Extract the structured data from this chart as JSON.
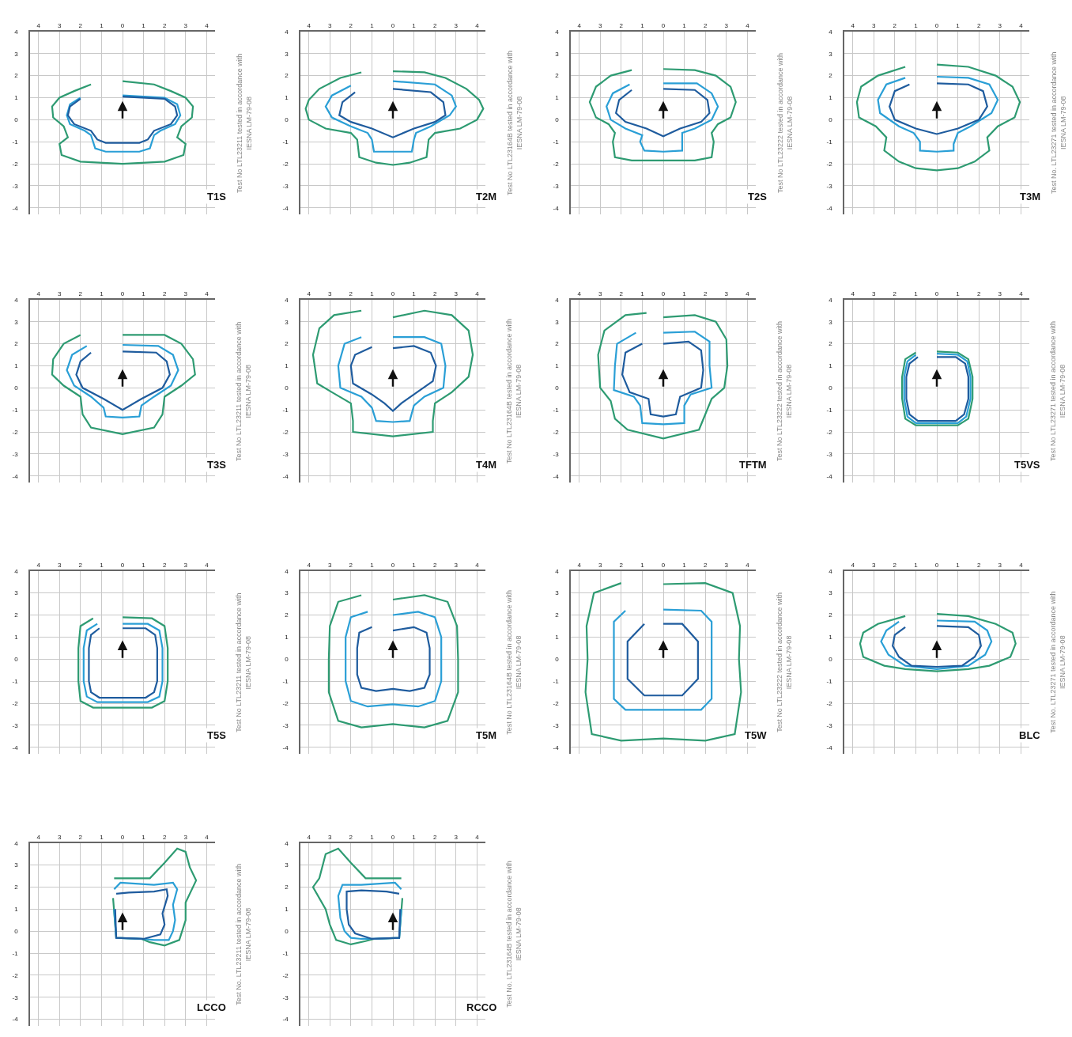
{
  "chart_data": [
    {
      "type": "line",
      "title": "T1S",
      "annotations": [
        "Test No LTL23211 tested in accordance with\nIESNA LM-79-08"
      ],
      "xlim": [
        -4.4,
        4.4
      ],
      "ylim": [
        -4.3,
        4
      ],
      "xticks": [
        {
          "value": -4,
          "label": "4"
        },
        {
          "value": -3,
          "label": "3"
        },
        {
          "value": -2,
          "label": "2"
        },
        {
          "value": -1,
          "label": "1"
        },
        0,
        1,
        2,
        3,
        4
      ],
      "yticks": [
        -4,
        -3,
        -2,
        -1,
        0,
        1,
        2,
        3,
        4
      ],
      "grid": true,
      "series": [
        {
          "color": "#2e9b72",
          "x": [
            0,
            1.5,
            2.3,
            3,
            3.35,
            3.3,
            2.8,
            2.6,
            3,
            2.9,
            2,
            0,
            -2,
            -2.9,
            -3,
            -2.6,
            -2.8,
            -3.3,
            -3.35,
            -3,
            -2.3,
            -1.5,
            0
          ],
          "values": [
            1.75,
            1.6,
            1.3,
            1,
            0.6,
            0.1,
            -0.3,
            -0.8,
            -1.1,
            -1.6,
            -1.9,
            -2,
            -1.9,
            -1.6,
            -1.1,
            -0.8,
            -0.3,
            0.1,
            0.6,
            1,
            1.3,
            1.6,
            1.75
          ]
        },
        {
          "color": "#2a9fd6",
          "x": [
            0,
            2,
            2.6,
            2.75,
            2.5,
            1.8,
            1.5,
            1.3,
            0.8,
            0,
            -0.8,
            -1.3,
            -1.5,
            -1.8,
            -2.5,
            -2.65,
            -2.5,
            -2,
            0
          ],
          "values": [
            1.1,
            1,
            0.7,
            0.2,
            -0.2,
            -0.5,
            -0.7,
            -1.3,
            -1.45,
            -1.45,
            -1.45,
            -1.3,
            -0.7,
            -0.5,
            -0.2,
            0.2,
            0.7,
            1,
            1.1
          ]
        },
        {
          "color": "#1f5c9e",
          "x": [
            0,
            2,
            2.5,
            2.6,
            2.3,
            1.5,
            1.2,
            0.8,
            0,
            -0.8,
            -1.2,
            -1.5,
            -2.3,
            -2.6,
            -2.5,
            -2,
            0
          ],
          "values": [
            1.05,
            0.95,
            0.6,
            0.2,
            -0.2,
            -0.5,
            -0.9,
            -1.05,
            -1.05,
            -1.05,
            -0.9,
            -0.5,
            -0.2,
            0.2,
            0.6,
            0.95,
            1.05
          ]
        }
      ]
    },
    {
      "type": "line",
      "title": "T2M",
      "annotations": [
        "Test No LTL23164B tested in accordance with\nIESNA LM-79-08"
      ],
      "xlim": [
        -4.4,
        4.4
      ],
      "ylim": [
        -4.3,
        4
      ],
      "xticks": [
        {
          "value": -4,
          "label": "4"
        },
        {
          "value": -3,
          "label": "3"
        },
        {
          "value": -2,
          "label": "2"
        },
        {
          "value": -1,
          "label": "1"
        },
        0,
        1,
        2,
        3,
        4
      ],
      "yticks": [
        -4,
        -3,
        -2,
        -1,
        0,
        1,
        2,
        3,
        4
      ],
      "grid": true,
      "series": [
        {
          "color": "#2e9b72",
          "x": [
            0,
            1.5,
            2.5,
            3.5,
            4.1,
            4.3,
            4,
            3.2,
            2,
            1.7,
            1.6,
            0.8,
            0,
            -0.8,
            -1.6,
            -1.7,
            -2,
            -3.2,
            -4,
            -4.15,
            -4,
            -3.5,
            -2.5,
            -1.5,
            0
          ],
          "values": [
            2.2,
            2.15,
            1.9,
            1.4,
            0.9,
            0.5,
            0,
            -0.4,
            -0.6,
            -0.9,
            -1.7,
            -1.95,
            -2.05,
            -1.95,
            -1.7,
            -0.9,
            -0.6,
            -0.4,
            0,
            0.5,
            0.9,
            1.4,
            1.9,
            2.15,
            2.2
          ]
        },
        {
          "color": "#2a9fd6",
          "x": [
            0,
            2,
            2.8,
            3,
            2.7,
            1.8,
            1.1,
            1,
            0.9,
            0,
            -0.9,
            -1,
            -1.2,
            -2,
            -2.9,
            -3.2,
            -2.9,
            -2,
            0
          ],
          "values": [
            1.75,
            1.6,
            1.1,
            0.6,
            0.2,
            -0.3,
            -0.6,
            -0.9,
            -1.45,
            -1.45,
            -1.45,
            -0.9,
            -0.6,
            -0.3,
            0.1,
            0.6,
            1.1,
            1.55,
            1.75
          ]
        },
        {
          "color": "#1f5c9e",
          "x": [
            0,
            1.8,
            2.4,
            2.5,
            2,
            1,
            0,
            -1,
            -2,
            -2.55,
            -2.4,
            -1.8,
            0
          ],
          "values": [
            1.4,
            1.25,
            0.8,
            0.2,
            -0.1,
            -0.4,
            -0.8,
            -0.4,
            -0.1,
            0.2,
            0.8,
            1.25,
            1.4
          ]
        }
      ]
    },
    {
      "type": "line",
      "title": "T2S",
      "annotations": [
        "Test No LTL23222 tested in accordance with\nIESNA LM-79-08"
      ],
      "xlim": [
        -4.4,
        4.4
      ],
      "ylim": [
        -4.3,
        4
      ],
      "xticks": [
        {
          "value": -4,
          "label": "4"
        },
        {
          "value": -3,
          "label": "3"
        },
        {
          "value": -2,
          "label": "2"
        },
        {
          "value": -1,
          "label": "1"
        },
        0,
        1,
        2,
        3,
        4
      ],
      "yticks": [
        -4,
        -3,
        -2,
        -1,
        0,
        1,
        2,
        3,
        4
      ],
      "grid": true,
      "series": [
        {
          "color": "#2e9b72",
          "x": [
            0,
            1.5,
            2.5,
            3.2,
            3.45,
            3.2,
            2.6,
            2.3,
            2.4,
            2.3,
            1.5,
            0,
            -1.5,
            -2.3,
            -2.4,
            -2.3,
            -2.6,
            -3.2,
            -3.5,
            -3.2,
            -2.5,
            -1.5,
            0
          ],
          "values": [
            2.3,
            2.25,
            2,
            1.5,
            0.8,
            0.1,
            -0.2,
            -0.6,
            -1,
            -1.7,
            -1.85,
            -1.85,
            -1.85,
            -1.7,
            -1,
            -0.6,
            -0.2,
            0.1,
            0.8,
            1.5,
            2,
            2.25,
            2.3
          ]
        },
        {
          "color": "#2a9fd6",
          "x": [
            0,
            1.6,
            2.3,
            2.6,
            2.3,
            1.5,
            0.9,
            0.9,
            0.9,
            0,
            -0.9,
            -1.1,
            -1,
            -1.8,
            -2.5,
            -2.7,
            -2.4,
            -1.6,
            0
          ],
          "values": [
            1.65,
            1.65,
            1.2,
            0.6,
            0,
            -0.4,
            -0.6,
            -1,
            -1.4,
            -1.45,
            -1.4,
            -1,
            -0.7,
            -0.4,
            0,
            0.6,
            1.2,
            1.6,
            1.65
          ]
        },
        {
          "color": "#1f5c9e",
          "x": [
            0,
            1.5,
            2.1,
            2.2,
            1.8,
            0.8,
            0,
            -0.8,
            -1.8,
            -2.25,
            -2.1,
            -1.5,
            0
          ],
          "values": [
            1.4,
            1.35,
            0.9,
            0.3,
            -0.1,
            -0.4,
            -0.75,
            -0.4,
            -0.1,
            0.3,
            0.9,
            1.35,
            1.4
          ]
        }
      ]
    },
    {
      "type": "line",
      "title": "T3M",
      "annotations": [
        "Test No. LTL23271 tested in accordance with\nIESNA LM-79-08"
      ],
      "xlim": [
        -4.4,
        4.4
      ],
      "ylim": [
        -4.3,
        4
      ],
      "xticks": [
        {
          "value": -4,
          "label": "4"
        },
        {
          "value": -3,
          "label": "3"
        },
        {
          "value": -2,
          "label": "2"
        },
        {
          "value": -1,
          "label": "1"
        },
        0,
        1,
        2,
        3,
        4
      ],
      "yticks": [
        -4,
        -3,
        -2,
        -1,
        0,
        1,
        2,
        3,
        4
      ],
      "grid": true,
      "series": [
        {
          "color": "#2e9b72",
          "x": [
            0,
            1.5,
            2.8,
            3.6,
            3.95,
            3.7,
            2.9,
            2.4,
            2.5,
            1.8,
            1,
            0,
            -1,
            -1.8,
            -2.5,
            -2.4,
            -2.9,
            -3.7,
            -3.8,
            -3.6,
            -2.8,
            -1.5,
            0
          ],
          "values": [
            2.5,
            2.4,
            2,
            1.5,
            0.8,
            0.1,
            -0.3,
            -0.8,
            -1.4,
            -1.9,
            -2.2,
            -2.3,
            -2.2,
            -1.9,
            -1.4,
            -0.8,
            -0.3,
            0.1,
            0.8,
            1.5,
            2,
            2.4,
            2.5
          ]
        },
        {
          "color": "#2a9fd6",
          "x": [
            0,
            1.5,
            2.5,
            2.9,
            2.6,
            1.6,
            1,
            0.8,
            0.8,
            0,
            -0.8,
            -0.8,
            -1.1,
            -1.8,
            -2.7,
            -2.8,
            -2.4,
            -1.5,
            0
          ],
          "values": [
            1.95,
            1.9,
            1.6,
            0.9,
            0.3,
            -0.3,
            -0.6,
            -1.1,
            -1.4,
            -1.45,
            -1.4,
            -1,
            -0.6,
            -0.3,
            0.3,
            0.9,
            1.6,
            1.9,
            1.95
          ]
        },
        {
          "color": "#1f5c9e",
          "x": [
            0,
            1.5,
            2.2,
            2.4,
            2,
            1,
            0,
            -1,
            -2,
            -2.25,
            -2,
            -1.3,
            0
          ],
          "values": [
            1.65,
            1.6,
            1.3,
            0.6,
            0,
            -0.4,
            -0.65,
            -0.4,
            0,
            0.6,
            1.3,
            1.6,
            1.65
          ]
        }
      ]
    },
    {
      "type": "line",
      "title": "T3S",
      "annotations": [
        "Test No LTL23211 tested in accordance with\nIESNA LM-79-08"
      ],
      "xlim": [
        -4.4,
        4.4
      ],
      "ylim": [
        -4.3,
        4
      ],
      "xticks": [
        {
          "value": -4,
          "label": "4"
        },
        {
          "value": -3,
          "label": "3"
        },
        {
          "value": -2,
          "label": "2"
        },
        {
          "value": -1,
          "label": "1"
        },
        0,
        1,
        2,
        3,
        4
      ],
      "yticks": [
        -4,
        -3,
        -2,
        -1,
        0,
        1,
        2,
        3,
        4
      ],
      "grid": true,
      "series": [
        {
          "color": "#2e9b72",
          "x": [
            0,
            2,
            2.8,
            3.35,
            3.45,
            2.8,
            2,
            1.9,
            1.5,
            0,
            -1.5,
            -1.9,
            -2,
            -2.8,
            -3.35,
            -3.3,
            -2.8,
            -2,
            0
          ],
          "values": [
            2.4,
            2.4,
            2,
            1.3,
            0.6,
            0.1,
            -0.4,
            -1.2,
            -1.8,
            -2.1,
            -1.8,
            -1.2,
            -0.4,
            0.1,
            0.6,
            1.3,
            2,
            2.4,
            2.4
          ]
        },
        {
          "color": "#2a9fd6",
          "x": [
            0,
            1.7,
            2.4,
            2.65,
            2.3,
            1.5,
            0.9,
            0.8,
            0,
            -0.8,
            -0.9,
            -1.5,
            -2.3,
            -2.65,
            -2.4,
            -1.7,
            0
          ],
          "values": [
            1.95,
            1.9,
            1.5,
            0.8,
            0.1,
            -0.4,
            -0.8,
            -1.3,
            -1.35,
            -1.3,
            -0.9,
            -0.4,
            0.1,
            0.8,
            1.5,
            1.9,
            1.95
          ]
        },
        {
          "color": "#1f5c9e",
          "x": [
            0,
            1.6,
            2.1,
            2.25,
            1.9,
            0.9,
            0,
            -0.9,
            -1.9,
            -2.2,
            -2,
            -1.5,
            0
          ],
          "values": [
            1.65,
            1.6,
            1.2,
            0.6,
            0,
            -0.5,
            -1,
            -0.5,
            0,
            0.6,
            1.2,
            1.6,
            1.65
          ]
        }
      ]
    },
    {
      "type": "line",
      "title": "T4M",
      "annotations": [
        "Test No LTL23164B tested in accordance with\nIESNA LM-79-08"
      ],
      "xlim": [
        -4.4,
        4.4
      ],
      "ylim": [
        -4.3,
        4
      ],
      "xticks": [
        {
          "value": -4,
          "label": "4"
        },
        {
          "value": -3,
          "label": "3"
        },
        {
          "value": -2,
          "label": "2"
        },
        {
          "value": -1,
          "label": "1"
        },
        0,
        1,
        2,
        3,
        4
      ],
      "yticks": [
        -4,
        -3,
        -2,
        -1,
        0,
        1,
        2,
        3,
        4
      ],
      "grid": true,
      "series": [
        {
          "color": "#2e9b72",
          "x": [
            0,
            1.5,
            2.8,
            3.6,
            3.8,
            3.6,
            2.8,
            2,
            1.9,
            1.9,
            0,
            -1.9,
            -1.9,
            -2,
            -2.9,
            -3.6,
            -3.8,
            -3.5,
            -2.8,
            -1.5,
            0
          ],
          "values": [
            3.2,
            3.5,
            3.3,
            2.6,
            1.5,
            0.5,
            -0.2,
            -0.7,
            -1.5,
            -2,
            -2.2,
            -2,
            -1.5,
            -0.7,
            -0.2,
            0.2,
            1.5,
            2.7,
            3.3,
            3.5,
            3.2
          ]
        },
        {
          "color": "#2a9fd6",
          "x": [
            0,
            1.5,
            2.3,
            2.5,
            2.4,
            1.5,
            1,
            0.8,
            0,
            -0.8,
            -1,
            -1.5,
            -2.5,
            -2.6,
            -2.3,
            -1.5,
            0
          ],
          "values": [
            2.3,
            2.3,
            2,
            1,
            0,
            -0.4,
            -0.8,
            -1.5,
            -1.55,
            -1.5,
            -0.9,
            -0.4,
            0,
            1,
            2,
            2.3,
            2.3
          ]
        },
        {
          "color": "#1f5c9e",
          "x": [
            0,
            1,
            1.8,
            2.05,
            1.9,
            1,
            0.4,
            0,
            -0.4,
            -1,
            -1.9,
            -2,
            -1.8,
            -1,
            0
          ],
          "values": [
            1.8,
            1.9,
            1.6,
            1,
            0.3,
            -0.3,
            -0.7,
            -1.05,
            -0.7,
            -0.3,
            0.2,
            1,
            1.5,
            1.85,
            1.8
          ]
        }
      ]
    },
    {
      "type": "line",
      "title": "TFTM",
      "annotations": [
        "Test No LTL23222 tested in accordance with\nIESNA LM-79-08"
      ],
      "xlim": [
        -4.4,
        4.4
      ],
      "ylim": [
        -4.3,
        4
      ],
      "xticks": [
        {
          "value": -4,
          "label": "4"
        },
        {
          "value": -3,
          "label": "3"
        },
        {
          "value": -2,
          "label": "2"
        },
        {
          "value": -1,
          "label": "1"
        },
        0,
        1,
        2,
        3,
        4
      ],
      "yticks": [
        -4,
        -3,
        -2,
        -1,
        0,
        1,
        2,
        3,
        4
      ],
      "grid": true,
      "series": [
        {
          "color": "#2e9b72",
          "x": [
            0,
            1.5,
            2.5,
            3,
            3.05,
            2.9,
            2.3,
            2,
            1.7,
            0,
            -1.7,
            -2.3,
            -2.5,
            -3,
            -3.1,
            -2.8,
            -1.8,
            -0.8,
            0
          ],
          "values": [
            3.2,
            3.3,
            3,
            2.2,
            1,
            0,
            -0.5,
            -1.2,
            -1.9,
            -2.3,
            -1.9,
            -1.4,
            -0.6,
            0,
            1.5,
            2.6,
            3.3,
            3.4,
            3.2
          ]
        },
        {
          "color": "#2a9fd6",
          "x": [
            0,
            1.5,
            2.2,
            2.2,
            2.3,
            1.3,
            1,
            1,
            0,
            -1,
            -1.1,
            -1.4,
            -2.35,
            -2.3,
            -2.2,
            -1.3,
            0
          ],
          "values": [
            2.5,
            2.55,
            2.1,
            1,
            0,
            -0.3,
            -0.8,
            -1.6,
            -1.65,
            -1.6,
            -0.8,
            -0.4,
            -0.1,
            1,
            2,
            2.5,
            2.5
          ]
        },
        {
          "color": "#1f5c9e",
          "x": [
            0,
            1.2,
            1.8,
            1.9,
            1.8,
            0.8,
            0.6,
            0,
            -0.6,
            -0.7,
            -1.6,
            -1.95,
            -1.8,
            -1,
            0
          ],
          "values": [
            2,
            2.1,
            1.7,
            0.8,
            0,
            -0.4,
            -1.2,
            -1.3,
            -1.2,
            -0.5,
            -0.2,
            0.6,
            1.6,
            2,
            2
          ]
        }
      ]
    },
    {
      "type": "line",
      "title": "T5VS",
      "annotations": [
        "Test No LTL23271 tested in accordance with\nIESNA LM-79-08"
      ],
      "xlim": [
        -4.4,
        4.4
      ],
      "ylim": [
        -4.3,
        4
      ],
      "xticks": [
        {
          "value": -4,
          "label": "4"
        },
        {
          "value": -3,
          "label": "3"
        },
        {
          "value": -2,
          "label": "2"
        },
        {
          "value": -1,
          "label": "1"
        },
        0,
        1,
        2,
        3,
        4
      ],
      "yticks": [
        -4,
        -3,
        -2,
        -1,
        0,
        1,
        2,
        3,
        4
      ],
      "grid": true,
      "series": [
        {
          "color": "#2e9b72",
          "x": [
            0,
            1,
            1.5,
            1.7,
            1.7,
            1.5,
            1,
            0,
            -1,
            -1.5,
            -1.65,
            -1.65,
            -1.5,
            -1,
            0
          ],
          "values": [
            1.65,
            1.6,
            1.3,
            0.5,
            -0.5,
            -1.4,
            -1.7,
            -1.7,
            -1.7,
            -1.4,
            -0.5,
            0.5,
            1.3,
            1.6,
            1.65
          ]
        },
        {
          "color": "#2a9fd6",
          "x": [
            0,
            1,
            1.45,
            1.6,
            1.6,
            1.4,
            1,
            0,
            -1,
            -1.4,
            -1.55,
            -1.55,
            -1.4,
            -1,
            0
          ],
          "values": [
            1.55,
            1.5,
            1.2,
            0.5,
            -0.5,
            -1.3,
            -1.6,
            -1.6,
            -1.6,
            -1.3,
            -0.5,
            0.5,
            1.2,
            1.5,
            1.55
          ]
        },
        {
          "color": "#1f5c9e",
          "x": [
            0,
            0.9,
            1.35,
            1.5,
            1.5,
            1.3,
            0.9,
            0,
            -0.9,
            -1.3,
            -1.45,
            -1.45,
            -1.3,
            -0.9,
            0
          ],
          "values": [
            1.4,
            1.4,
            1.1,
            0.5,
            -0.5,
            -1.2,
            -1.5,
            -1.5,
            -1.5,
            -1.2,
            -0.5,
            0.5,
            1.1,
            1.4,
            1.4
          ]
        }
      ]
    },
    {
      "type": "line",
      "title": "T5S",
      "annotations": [
        "Test No LTL23211 tested in accordance with\nIESNA LM-79-08"
      ],
      "xlim": [
        -4.4,
        4.4
      ],
      "ylim": [
        -4.3,
        4
      ],
      "xticks": [
        {
          "value": -4,
          "label": "4"
        },
        {
          "value": -3,
          "label": "3"
        },
        {
          "value": -2,
          "label": "2"
        },
        {
          "value": -1,
          "label": "1"
        },
        0,
        1,
        2,
        3,
        4
      ],
      "yticks": [
        -4,
        -3,
        -2,
        -1,
        0,
        1,
        2,
        3,
        4
      ],
      "grid": true,
      "series": [
        {
          "color": "#2e9b72",
          "x": [
            0,
            1.4,
            2,
            2.15,
            2.15,
            2,
            1.4,
            0,
            -1.4,
            -2,
            -2.1,
            -2.1,
            -2,
            -1.4,
            0
          ],
          "values": [
            1.9,
            1.85,
            1.5,
            0.5,
            -1,
            -1.9,
            -2.2,
            -2.2,
            -2.2,
            -1.9,
            -1,
            0.5,
            1.5,
            1.85,
            1.9
          ]
        },
        {
          "color": "#2a9fd6",
          "x": [
            0,
            1.2,
            1.75,
            1.9,
            1.9,
            1.75,
            1.2,
            0,
            -1.2,
            -1.7,
            -1.85,
            -1.85,
            -1.7,
            -1.2,
            0
          ],
          "values": [
            1.6,
            1.6,
            1.3,
            0.5,
            -1,
            -1.7,
            -1.95,
            -1.95,
            -1.95,
            -1.7,
            -1,
            0.5,
            1.3,
            1.6,
            1.6
          ]
        },
        {
          "color": "#1f5c9e",
          "x": [
            0,
            1.1,
            1.55,
            1.65,
            1.65,
            1.5,
            1.1,
            0,
            -1.1,
            -1.5,
            -1.6,
            -1.6,
            -1.5,
            -1.1,
            0
          ],
          "values": [
            1.4,
            1.4,
            1.1,
            0.5,
            -1,
            -1.5,
            -1.75,
            -1.75,
            -1.75,
            -1.5,
            -1,
            0.5,
            1.1,
            1.4,
            1.4
          ]
        }
      ]
    },
    {
      "type": "line",
      "title": "T5M",
      "annotations": [
        "Test No LTL23164B tested in accordance with\nIESNA LM-79-08"
      ],
      "xlim": [
        -4.4,
        4.4
      ],
      "ylim": [
        -4.3,
        4
      ],
      "xticks": [
        {
          "value": -4,
          "label": "4"
        },
        {
          "value": -3,
          "label": "3"
        },
        {
          "value": -2,
          "label": "2"
        },
        {
          "value": -1,
          "label": "1"
        },
        0,
        1,
        2,
        3,
        4
      ],
      "yticks": [
        -4,
        -3,
        -2,
        -1,
        0,
        1,
        2,
        3,
        4
      ],
      "grid": true,
      "series": [
        {
          "color": "#2e9b72",
          "x": [
            0,
            1.5,
            2.6,
            3.05,
            3.1,
            3.1,
            2.6,
            1.5,
            0,
            -1.5,
            -2.6,
            -3.05,
            -3.05,
            -3,
            -2.6,
            -1.5,
            0
          ],
          "values": [
            2.7,
            2.9,
            2.6,
            1.5,
            0,
            -1.5,
            -2.8,
            -3.1,
            -2.95,
            -3.1,
            -2.8,
            -1.5,
            0,
            1.5,
            2.6,
            2.9,
            2.7
          ]
        },
        {
          "color": "#2a9fd6",
          "x": [
            0,
            1.2,
            2,
            2.3,
            2.3,
            2,
            1.2,
            0,
            -1.2,
            -2,
            -2.25,
            -2.25,
            -2,
            -1.2,
            0
          ],
          "values": [
            2,
            2.15,
            1.9,
            1,
            -1,
            -1.9,
            -2.15,
            -2.05,
            -2.15,
            -1.9,
            -1,
            1,
            1.9,
            2.15,
            2
          ]
        },
        {
          "color": "#1f5c9e",
          "x": [
            0,
            1,
            1.6,
            1.75,
            1.75,
            1.5,
            0.8,
            0,
            -0.8,
            -1.5,
            -1.7,
            -1.7,
            -1.6,
            -1,
            0
          ],
          "values": [
            1.3,
            1.45,
            1.2,
            0.5,
            -0.7,
            -1.3,
            -1.45,
            -1.35,
            -1.45,
            -1.3,
            -0.7,
            0.5,
            1.2,
            1.45,
            1.3
          ]
        }
      ]
    },
    {
      "type": "line",
      "title": "T5W",
      "annotations": [
        "Test No LTL23222 tested in accordance with\nIESNA LM-79-08"
      ],
      "xlim": [
        -4.4,
        4.4
      ],
      "ylim": [
        -4.3,
        4
      ],
      "xticks": [
        {
          "value": -4,
          "label": "4"
        },
        {
          "value": -3,
          "label": "3"
        },
        {
          "value": -2,
          "label": "2"
        },
        {
          "value": -1,
          "label": "1"
        },
        0,
        1,
        2,
        3,
        4
      ],
      "yticks": [
        -4,
        -3,
        -2,
        -1,
        0,
        1,
        2,
        3,
        4
      ],
      "grid": true,
      "series": [
        {
          "color": "#2e9b72",
          "x": [
            0,
            2,
            3.3,
            3.65,
            3.6,
            3.7,
            3.4,
            2,
            0,
            -2,
            -3.4,
            -3.7,
            -3.6,
            -3.65,
            -3.3,
            -2,
            0
          ],
          "values": [
            3.4,
            3.45,
            3,
            1.5,
            0,
            -1.5,
            -3.4,
            -3.7,
            -3.6,
            -3.7,
            -3.4,
            -1.5,
            0,
            1.5,
            3,
            3.45,
            3.4
          ]
        },
        {
          "color": "#2a9fd6",
          "x": [
            0,
            1.8,
            2.3,
            2.3,
            1.8,
            0,
            -1.8,
            -2.35,
            -2.35,
            -1.8,
            0
          ],
          "values": [
            2.25,
            2.2,
            1.7,
            -1.8,
            -2.3,
            -2.3,
            -2.3,
            -1.8,
            1.7,
            2.2,
            2.25
          ]
        },
        {
          "color": "#1f5c9e",
          "x": [
            0,
            0.9,
            1.65,
            1.65,
            0.9,
            0,
            -0.9,
            -1.7,
            -1.7,
            -0.9,
            0
          ],
          "values": [
            1.6,
            1.6,
            0.8,
            -0.9,
            -1.65,
            -1.65,
            -1.65,
            -0.9,
            0.8,
            1.6,
            1.6
          ]
        }
      ]
    },
    {
      "type": "line",
      "title": "BLC",
      "annotations": [
        "Test No. LTL23271 tested in accordance with\nIESNA LM-79-08"
      ],
      "xlim": [
        -4.4,
        4.4
      ],
      "ylim": [
        -4.3,
        4
      ],
      "xticks": [
        {
          "value": -4,
          "label": "4"
        },
        {
          "value": -3,
          "label": "3"
        },
        {
          "value": -2,
          "label": "2"
        },
        {
          "value": -1,
          "label": "1"
        },
        0,
        1,
        2,
        3,
        4
      ],
      "yticks": [
        -4,
        -3,
        -2,
        -1,
        0,
        1,
        2,
        3,
        4
      ],
      "grid": true,
      "series": [
        {
          "color": "#2e9b72",
          "x": [
            0,
            1.5,
            2.8,
            3.6,
            3.75,
            3.5,
            2.5,
            1.5,
            0,
            -1.5,
            -2.5,
            -3.5,
            -3.65,
            -3.5,
            -2.8,
            -1.5,
            0
          ],
          "values": [
            2.05,
            1.95,
            1.6,
            1.2,
            0.7,
            0.1,
            -0.3,
            -0.45,
            -0.55,
            -0.45,
            -0.3,
            0.1,
            0.7,
            1.2,
            1.6,
            1.95,
            2.05
          ]
        },
        {
          "color": "#2a9fd6",
          "x": [
            0,
            1.8,
            2.4,
            2.6,
            2.3,
            1.5,
            0,
            -1.5,
            -2.3,
            -2.65,
            -2.4,
            -1.8,
            0
          ],
          "values": [
            1.75,
            1.7,
            1.3,
            0.8,
            0.2,
            -0.3,
            -0.45,
            -0.3,
            0.2,
            0.8,
            1.3,
            1.7,
            1.75
          ]
        },
        {
          "color": "#1f5c9e",
          "x": [
            0,
            1.5,
            2,
            2.1,
            1.8,
            1.2,
            0,
            -1.2,
            -1.8,
            -2.1,
            -2,
            -1.5,
            0
          ],
          "values": [
            1.5,
            1.45,
            1.1,
            0.6,
            0.1,
            -0.3,
            -0.35,
            -0.3,
            0.1,
            0.6,
            1.1,
            1.45,
            1.5
          ]
        }
      ]
    },
    {
      "type": "line",
      "title": "LCCO",
      "annotations": [
        "Test No. LTL23211 tested in accordance with\nIESNA LM-79-08"
      ],
      "xlim": [
        -4.4,
        4.4
      ],
      "ylim": [
        -4.3,
        4
      ],
      "xticks": [
        {
          "value": -4,
          "label": "4"
        },
        {
          "value": -3,
          "label": "3"
        },
        {
          "value": -2,
          "label": "2"
        },
        {
          "value": -1,
          "label": "1"
        },
        0,
        1,
        2,
        3,
        4
      ],
      "yticks": [
        -4,
        -3,
        -2,
        -1,
        0,
        1,
        2,
        3,
        4
      ],
      "grid": true,
      "series": [
        {
          "color": "#2e9b72",
          "x": [
            -0.4,
            1.3,
            2,
            2.6,
            3,
            3.2,
            3.5,
            3,
            3,
            2.7,
            2,
            1.3,
            0.9,
            -0.3,
            -0.45,
            -0.4
          ],
          "values": [
            2.4,
            2.4,
            3.1,
            3.75,
            3.6,
            2.9,
            2.3,
            1.3,
            0.5,
            -0.4,
            -0.65,
            -0.5,
            -0.35,
            -0.3,
            1.5,
            2.4
          ]
        },
        {
          "color": "#2a9fd6",
          "x": [
            -0.4,
            -0.1,
            1.5,
            2.4,
            2.6,
            2.4,
            2.5,
            2.4,
            2.2,
            1.5,
            0.9,
            -0.3,
            -0.4,
            -0.4
          ],
          "values": [
            1.9,
            2.2,
            2.1,
            2.2,
            1.9,
            1.2,
            0.5,
            0,
            -0.4,
            -0.4,
            -0.35,
            -0.3,
            1,
            1.9
          ]
        },
        {
          "color": "#1f5c9e",
          "x": [
            -0.3,
            0.3,
            1.5,
            2.1,
            2.15,
            1.9,
            2,
            1.8,
            1,
            -0.3,
            -0.35,
            -0.3
          ],
          "values": [
            1.7,
            1.75,
            1.8,
            1.9,
            1.6,
            0.8,
            0.3,
            -0.15,
            -0.35,
            -0.3,
            1,
            1.7
          ]
        }
      ]
    },
    {
      "type": "line",
      "title": "RCCO",
      "annotations": [
        "Test No. LTL23164B tested in accordance with\nIESNA LM-79-08"
      ],
      "xlim": [
        -4.4,
        4.4
      ],
      "ylim": [
        -4.3,
        4
      ],
      "xticks": [
        {
          "value": -4,
          "label": "4"
        },
        {
          "value": -3,
          "label": "3"
        },
        {
          "value": -2,
          "label": "2"
        },
        {
          "value": -1,
          "label": "1"
        },
        0,
        1,
        2,
        3,
        4
      ],
      "yticks": [
        -4,
        -3,
        -2,
        -1,
        0,
        1,
        2,
        3,
        4
      ],
      "grid": true,
      "series": [
        {
          "color": "#2e9b72",
          "x": [
            0.4,
            -1.3,
            -2,
            -2.6,
            -3.2,
            -3.5,
            -3.8,
            -3.2,
            -3,
            -2.7,
            -2,
            -1.3,
            -0.9,
            0.3,
            0.45,
            0.4
          ],
          "values": [
            2.4,
            2.4,
            3.1,
            3.75,
            3.5,
            2.4,
            2,
            1,
            0.3,
            -0.4,
            -0.6,
            -0.45,
            -0.35,
            -0.3,
            1.5,
            2.4
          ]
        },
        {
          "color": "#2a9fd6",
          "x": [
            0.4,
            0.1,
            -1.5,
            -2.4,
            -2.6,
            -2.5,
            -2.3,
            -2,
            -1.5,
            -0.9,
            0.3,
            0.4,
            0.4
          ],
          "values": [
            1.9,
            2.2,
            2.1,
            2.1,
            1.6,
            0.6,
            0,
            -0.3,
            -0.35,
            -0.35,
            -0.3,
            1,
            1.9
          ]
        },
        {
          "color": "#1f5c9e",
          "x": [
            0.3,
            -0.3,
            -1.5,
            -2.2,
            -2.2,
            -2.1,
            -1.8,
            -1,
            0.3,
            0.35,
            0.3
          ],
          "values": [
            1.7,
            1.8,
            1.85,
            1.8,
            1,
            0.3,
            -0.1,
            -0.35,
            -0.3,
            1,
            1.7
          ]
        }
      ]
    }
  ]
}
